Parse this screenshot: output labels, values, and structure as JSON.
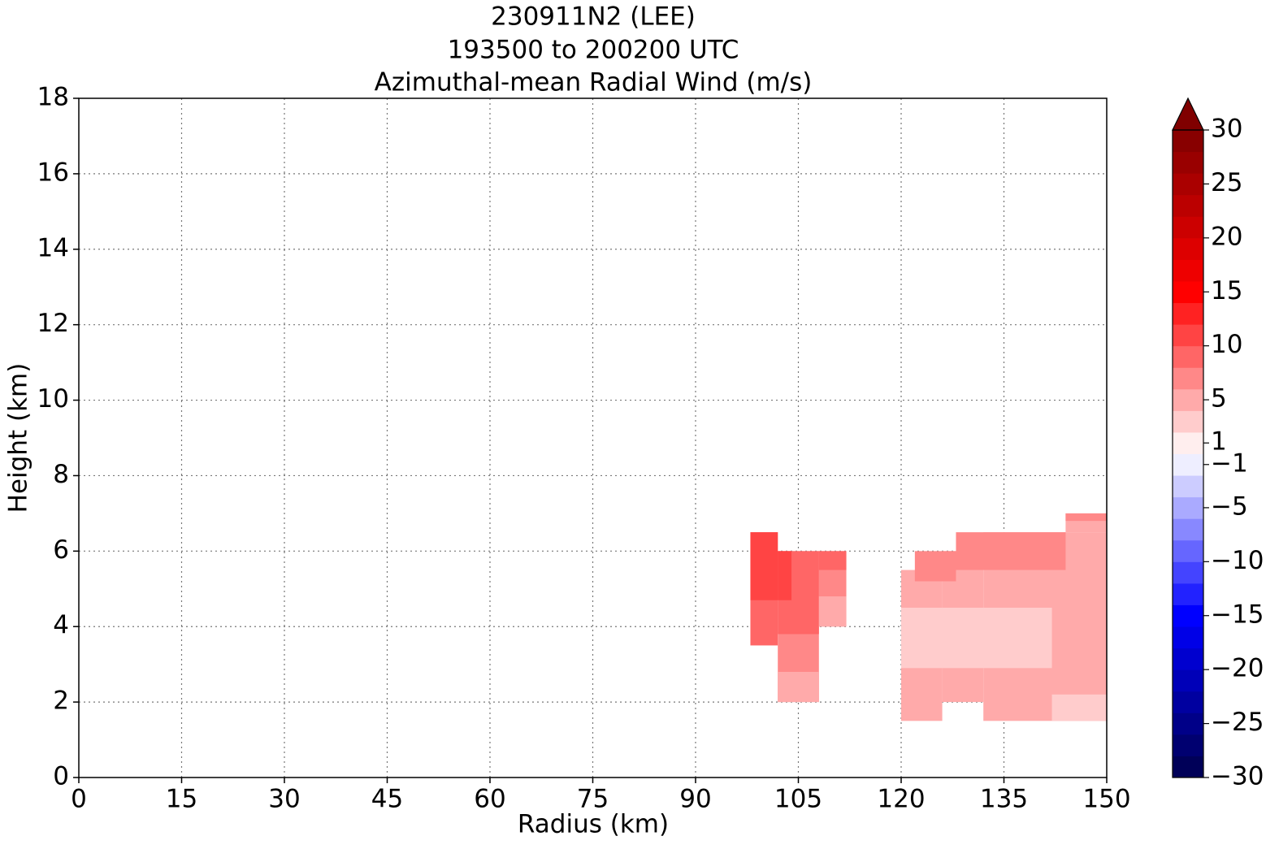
{
  "chart_data": {
    "type": "contourf",
    "title": [
      "230911N2 (LEE)",
      "193500 to 200200 UTC",
      "Azimuthal-mean Radial Wind (m/s)"
    ],
    "x_label": "Radius (km)",
    "y_label": "Height (km)",
    "xlim": [
      0,
      150
    ],
    "xticks": [
      0,
      15,
      30,
      45,
      60,
      75,
      90,
      105,
      120,
      135,
      150
    ],
    "ylim": [
      0,
      18
    ],
    "yticks": [
      0,
      2,
      4,
      6,
      8,
      10,
      12,
      14,
      16,
      18
    ],
    "grid": true,
    "colormap": "seismic",
    "regions": [
      {
        "radius": [
          98,
          102
        ],
        "height": [
          3.5,
          6.5
        ],
        "value": 9.5
      },
      {
        "radius": [
          102,
          108
        ],
        "height": [
          2,
          6
        ],
        "value": 7.5
      },
      {
        "radius": [
          108,
          112
        ],
        "height": [
          4,
          6
        ],
        "value": 7.5
      },
      {
        "radius": [
          102,
          108
        ],
        "height": [
          3.8,
          6
        ],
        "value": 9.5
      },
      {
        "radius": [
          98,
          102
        ],
        "height": [
          4.7,
          6.5
        ],
        "value": 11.5
      },
      {
        "radius": [
          102,
          104
        ],
        "height": [
          4.7,
          6
        ],
        "value": 11.5
      },
      {
        "radius": [
          102,
          108
        ],
        "height": [
          2,
          2.8
        ],
        "value": 5.5
      },
      {
        "radius": [
          108,
          112
        ],
        "height": [
          4,
          4.8
        ],
        "value": 5.5
      },
      {
        "radius": [
          108,
          112
        ],
        "height": [
          5.5,
          6
        ],
        "value": 9.5
      },
      {
        "radius": [
          120,
          126
        ],
        "height": [
          1.5,
          5.5
        ],
        "value": 5.5
      },
      {
        "radius": [
          126,
          132
        ],
        "height": [
          2,
          6
        ],
        "value": 5.5
      },
      {
        "radius": [
          132,
          150
        ],
        "height": [
          1.5,
          6.5
        ],
        "value": 5.5
      },
      {
        "radius": [
          144,
          150
        ],
        "height": [
          6.5,
          7
        ],
        "value": 5.5
      },
      {
        "radius": [
          122,
          128
        ],
        "height": [
          5.2,
          6
        ],
        "value": 7.5
      },
      {
        "radius": [
          128,
          144
        ],
        "height": [
          5.5,
          6.5
        ],
        "value": 7.5
      },
      {
        "radius": [
          144,
          150
        ],
        "height": [
          6.8,
          7
        ],
        "value": 7.5
      },
      {
        "radius": [
          120,
          142
        ],
        "height": [
          2.9,
          4.5
        ],
        "value": 3.5
      },
      {
        "radius": [
          142,
          150
        ],
        "height": [
          1.5,
          2.2
        ],
        "value": 3.5
      }
    ],
    "colorbar": {
      "lim": [
        -30,
        30
      ],
      "extend": "max",
      "levels": [
        -30,
        -28,
        -26,
        -24,
        -22,
        -20,
        -18,
        -16,
        -14,
        -12,
        -10,
        -8,
        -6,
        -4,
        -2,
        0,
        2,
        4,
        6,
        8,
        10,
        12,
        14,
        16,
        18,
        20,
        22,
        24,
        26,
        28,
        30
      ],
      "ticks": [
        30,
        25,
        20,
        15,
        10,
        5,
        1,
        {
          "value": -1,
          "label": "−1"
        },
        {
          "value": -5,
          "label": "−5"
        },
        {
          "value": -10,
          "label": "−10"
        },
        {
          "value": -15,
          "label": "−15"
        },
        {
          "value": -20,
          "label": "−20"
        },
        {
          "value": -25,
          "label": "−25"
        },
        {
          "value": -30,
          "label": "−30"
        }
      ]
    }
  }
}
